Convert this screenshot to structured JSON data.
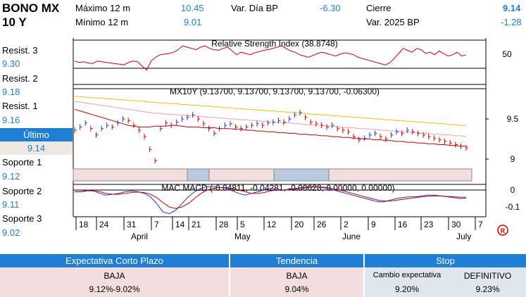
{
  "instrument": {
    "line1": "BONO MX",
    "line2": "10 Y"
  },
  "stats": {
    "max12_label": "Máximo 12 m",
    "max12_value": "10.45",
    "min12_label": "Mínimo 12 m",
    "min12_value": "9.01",
    "var_dia_label": "Var. Día BP",
    "var_dia_value": "-6.30",
    "cierre_label": "Cierre",
    "cierre_value": "9.14",
    "var2025_label": "Var. 2025 BP",
    "var2025_value": "-1.28"
  },
  "levels": {
    "resist3_label": "Resist. 3",
    "resist3_value": "9.30",
    "resist2_label": "Resist. 2",
    "resist2_value": "9.18",
    "resist1_label": "Resist. 1",
    "resist1_value": "9.16",
    "ultimo_label": "Último",
    "ultimo_value": "9.14",
    "soporte1_label": "Soporte 1",
    "soporte1_value": "9.12",
    "soporte2_label": "Soporte 2",
    "soporte2_value": "9.11",
    "soporte3_label": "Soporte 3",
    "soporte3_value": "9.02"
  },
  "colors": {
    "accent": "#1e7fd4",
    "price": "#cc0000",
    "ma_yellow": "#f2c200",
    "ma_pink": "#f2a0a8",
    "macd": "#2233cc",
    "band_pink": "#f2dede",
    "band_blue": "#b8c9e0"
  },
  "chart_data": [
    {
      "type": "line",
      "title": "Relative Strength Index (38.8748)",
      "yticks": [
        50
      ],
      "reference_lines": [
        70,
        30
      ],
      "series": [
        {
          "values": [
            38,
            36,
            37,
            35,
            34,
            38,
            37,
            36,
            35,
            34,
            33,
            32,
            36,
            38,
            37,
            30,
            24,
            38,
            44,
            48,
            49,
            50,
            52,
            56,
            62,
            60,
            58,
            56,
            60,
            62,
            58,
            56,
            55,
            58,
            60,
            54,
            48,
            52,
            50,
            48,
            51,
            53,
            55,
            56,
            58,
            60,
            62,
            58,
            54,
            52,
            48,
            46,
            44,
            47,
            50,
            52,
            50,
            48,
            46,
            49,
            51,
            50,
            48,
            44,
            42,
            40,
            38,
            36,
            34,
            32,
            35,
            42,
            50,
            58,
            55,
            52,
            58,
            56,
            50,
            52,
            48,
            54,
            50,
            46,
            48,
            52,
            46,
            48
          ]
        }
      ]
    },
    {
      "type": "line",
      "title": "MX10Y (9.13700, 9.13700, 9.13700, 9.13700, -0.06300)",
      "yticks": [
        9.5,
        9.0
      ],
      "ylim": [
        8.95,
        9.85
      ],
      "series": [
        {
          "values": [
            9.36,
            9.4,
            9.45,
            9.38,
            9.3,
            9.38,
            9.42,
            9.4,
            9.45,
            9.5,
            9.48,
            9.42,
            9.36,
            9.28,
            9.12,
            8.98,
            9.38,
            9.45,
            9.42,
            9.46,
            9.5,
            9.52,
            9.55,
            9.5,
            9.44,
            9.38,
            9.32,
            9.38,
            9.42,
            9.44,
            9.4,
            9.38,
            9.4,
            9.42,
            9.44,
            9.42,
            9.45,
            9.46,
            9.48,
            9.46,
            9.5,
            9.55,
            9.58,
            9.52,
            9.46,
            9.44,
            9.42,
            9.4,
            9.42,
            9.38,
            9.36,
            9.34,
            9.28,
            9.24,
            9.26,
            9.3,
            9.32,
            9.28,
            9.25,
            9.3,
            9.34,
            9.32,
            9.36,
            9.34,
            9.32,
            9.3,
            9.28,
            9.26,
            9.24,
            9.22,
            9.2,
            9.18,
            9.16,
            9.14
          ]
        },
        {
          "values": [
            9.62,
            9.6,
            9.58,
            9.56,
            9.54,
            9.52,
            9.5,
            9.48,
            9.46,
            9.44,
            9.42,
            9.41,
            9.4,
            9.4,
            9.4,
            9.41,
            9.41,
            9.41,
            9.42,
            9.42,
            9.41,
            9.4,
            9.4,
            9.4,
            9.39,
            9.39,
            9.39,
            9.38,
            9.38,
            9.38,
            9.37,
            9.37,
            9.36,
            9.36,
            9.35,
            9.35,
            9.34,
            9.34,
            9.33,
            9.33,
            9.32,
            9.32,
            9.31,
            9.31,
            9.3,
            9.3,
            9.29,
            9.29,
            9.28,
            9.28,
            9.27,
            9.27,
            9.26,
            9.26,
            9.25,
            9.25,
            9.24,
            9.24,
            9.23,
            9.23,
            9.22,
            9.22,
            9.21,
            9.21,
            9.2,
            9.2,
            9.19,
            9.19,
            9.18,
            9.18,
            9.17,
            9.17,
            9.16,
            9.16
          ]
        },
        {
          "values": [
            9.78,
            9.78,
            9.77,
            9.77,
            9.76,
            9.76,
            9.75,
            9.75,
            9.74,
            9.74,
            9.73,
            9.73,
            9.72,
            9.72,
            9.71,
            9.71,
            9.7,
            9.7,
            9.69,
            9.69,
            9.68,
            9.68,
            9.67,
            9.67,
            9.66,
            9.66,
            9.65,
            9.65,
            9.64,
            9.64,
            9.63,
            9.63,
            9.62,
            9.62,
            9.61,
            9.61,
            9.6,
            9.6,
            9.59,
            9.59,
            9.58,
            9.58,
            9.57,
            9.57,
            9.56,
            9.56,
            9.55,
            9.55,
            9.54,
            9.54,
            9.53,
            9.53,
            9.52,
            9.52,
            9.51,
            9.51,
            9.5,
            9.5,
            9.49,
            9.49,
            9.48,
            9.48,
            9.47,
            9.47,
            9.46,
            9.46,
            9.45,
            9.45,
            9.44,
            9.44,
            9.43,
            9.43,
            9.42,
            9.42
          ]
        },
        {
          "values": [
            9.72,
            9.71,
            9.7,
            9.69,
            9.68,
            9.67,
            9.66,
            9.65,
            9.64,
            9.63,
            9.62,
            9.61,
            9.6,
            9.59,
            9.58,
            9.57,
            9.57,
            9.56,
            9.56,
            9.55,
            9.55,
            9.54,
            9.54,
            9.53,
            9.53,
            9.52,
            9.52,
            9.51,
            9.51,
            9.5,
            9.5,
            9.49,
            9.49,
            9.48,
            9.48,
            9.47,
            9.47,
            9.46,
            9.46,
            9.45,
            9.45,
            9.44,
            9.44,
            9.43,
            9.43,
            9.42,
            9.42,
            9.41,
            9.41,
            9.4,
            9.4,
            9.39,
            9.39,
            9.38,
            9.38,
            9.37,
            9.37,
            9.36,
            9.36,
            9.35,
            9.35,
            9.34,
            9.34,
            9.33,
            9.33,
            9.32,
            9.32,
            9.31,
            9.31,
            9.3,
            9.3,
            9.29,
            9.29,
            9.28
          ]
        }
      ],
      "trend_bands": [
        "down",
        "up",
        "down",
        "up",
        "down"
      ]
    },
    {
      "type": "line",
      "title": "MAC MACD (-0.04811, -0.04281, -0.00628, 0.00000, 0.00000)",
      "yticks": [
        0.0,
        -0.1
      ],
      "ylim": [
        -0.17,
        0.04
      ],
      "series": [
        {
          "values": [
            -0.01,
            -0.01,
            0.0,
            -0.005,
            -0.02,
            -0.03,
            -0.025,
            -0.02,
            -0.01,
            -0.005,
            -0.01,
            -0.02,
            -0.04,
            -0.08,
            -0.13,
            -0.14,
            -0.12,
            -0.08,
            -0.04,
            -0.01,
            0.01,
            0.02,
            0.02,
            0.015,
            0.01,
            -0.005,
            -0.02,
            -0.03,
            -0.02,
            -0.01,
            0.0,
            0.01,
            0.005,
            0.0,
            0.005,
            0.01,
            0.015,
            0.02,
            0.02,
            0.015,
            0.01,
            0.0,
            -0.01,
            -0.02,
            -0.03,
            -0.04,
            -0.05,
            -0.06,
            -0.07,
            -0.07,
            -0.06,
            -0.05,
            -0.045,
            -0.04,
            -0.04,
            -0.035,
            -0.03,
            -0.03,
            -0.035,
            -0.04,
            -0.045,
            -0.05,
            -0.048
          ]
        },
        {
          "values": [
            -0.01,
            -0.01,
            -0.005,
            -0.005,
            -0.01,
            -0.02,
            -0.025,
            -0.025,
            -0.02,
            -0.015,
            -0.012,
            -0.015,
            -0.025,
            -0.045,
            -0.075,
            -0.1,
            -0.11,
            -0.1,
            -0.08,
            -0.05,
            -0.02,
            0.0,
            0.01,
            0.015,
            0.015,
            0.01,
            0.0,
            -0.01,
            -0.02,
            -0.02,
            -0.015,
            -0.005,
            0.0,
            0.0,
            0.002,
            0.005,
            0.01,
            0.015,
            0.018,
            0.018,
            0.015,
            0.008,
            0.0,
            -0.01,
            -0.02,
            -0.03,
            -0.04,
            -0.05,
            -0.06,
            -0.065,
            -0.065,
            -0.06,
            -0.055,
            -0.05,
            -0.045,
            -0.04,
            -0.037,
            -0.035,
            -0.035,
            -0.038,
            -0.04,
            -0.042,
            -0.043
          ]
        }
      ]
    }
  ],
  "xaxis": {
    "ticks": [
      "18",
      "24",
      "31",
      "7",
      "14",
      "21",
      "28",
      "5",
      "12",
      "20",
      "26",
      "2",
      "9",
      "16",
      "23",
      "30",
      "7"
    ],
    "months": [
      "April",
      "May",
      "June",
      "July"
    ]
  },
  "bottom_table": {
    "col1_header": "Expectativa Corto Plazo",
    "col1_value1": "BAJA",
    "col1_value2": "9.12%-9.02%",
    "col2_header": "Tendencia",
    "col2_value1": "BAJA",
    "col2_value2": "9.04%",
    "col3_header": "Stop",
    "col3_sub1_label": "Cambio expectativa",
    "col3_sub1_value": "9.20%",
    "col3_sub2_label": "DEFINITIVO",
    "col3_sub2_value": "9.23%"
  }
}
